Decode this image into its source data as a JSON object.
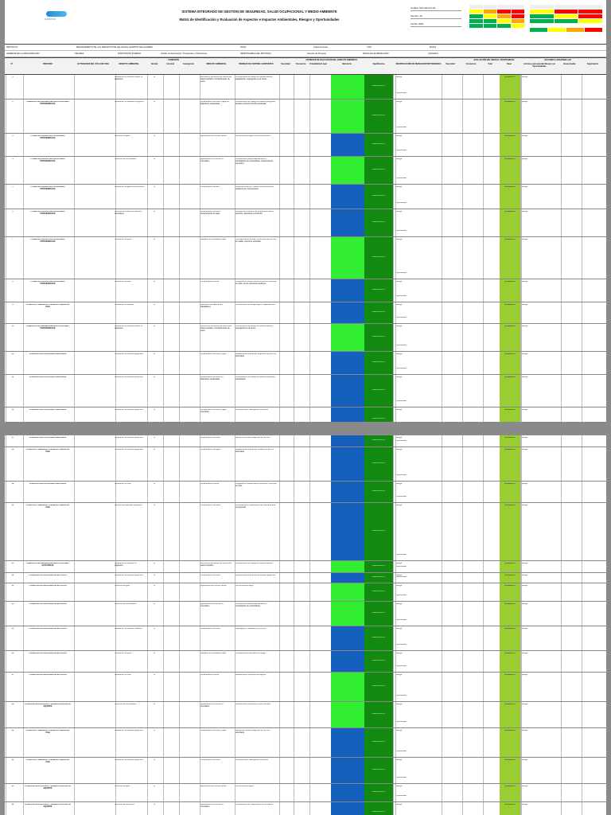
{
  "header": {
    "logo_text": "SANITAS",
    "title_line1": "SISTEMA INTEGRADO DE GESTION DE SEGURIDAD, SALUD OCUPACIONAL Y MEDIO AMBIENTE",
    "title_line2": "Matriz de Identificación y Evaluación de Aspectos e Impactos Ambientales, Riesgos y Oportunidades",
    "ref_code": "Código: SIG-MA-FO-01",
    "ref_version": "Versión: 02",
    "ref_date": "Fecha: 2021"
  },
  "info": {
    "proyecto_label": "PROYECTO",
    "proyecto_value": "MEJORAMIENTO DE LOS SERVICIOS DE SALUD DEL HOSPITAL DE HUARMEY",
    "zona_label": "ZONA",
    "zona_value": "Todas las áreas",
    "cod_label": "CÓD",
    "cod_value": "MAP-E",
    "gerente_label": "GERENTE DE LA ORGANIZACIÓN",
    "pm_label": "PM AREA",
    "disp_label": "DISPOSICION INTERNA",
    "disp_value": "Vertido Contaminación / Propuestas y Ubicaciones",
    "resp_label": "RESPONSABLE DEL PROCESO",
    "resp_value": "Gerente de Proyecto",
    "fecha_label": "FECHA DE ELABORACIÓN",
    "fecha_value": "01/03/2021"
  },
  "columns": [
    "N°",
    "PROCESO",
    "ACTIVIDADES DEL CICLO DE VIDA",
    "ASPECTO AMBIENTAL",
    "Normal",
    "Anormal",
    "Emergencia",
    "IMPACTO AMBIENTAL",
    "MEDIDAS DE CONTROL EXISTENTES",
    "Severidad",
    "Frecuencia",
    "Probabilidad Legal",
    "Valoración",
    "Significancia",
    "IDENTIFICACIÓN DE RIESGOS/OPORTUNIDADES",
    "Severidad",
    "Frecuencia",
    "Total",
    "Nivel",
    "Acciones para abordar Riesgos y/o Oportunidades",
    "Responsable",
    "Seguimiento"
  ],
  "group_headers": {
    "condicion": "CONDICIÓN",
    "criterios": "CRITERIOS DE EVALUACIÓN DEL ASPECTO AMBIENTAL",
    "evaluacion": "EVALUACIÓN DEL RIESGO / OPORTUNIDAD",
    "acciones": "ACCIONES A DESARROLLAR"
  },
  "labels": {
    "nivel_moderado": "MODERADO",
    "significativo": "SIGNIFICATIVO",
    "no_significativo": "NO SIGNIFICATIVO",
    "riesgo": "Riesgo",
    "oportunidad": "Oportunidad",
    "x": "X"
  },
  "page1_rows": [
    {
      "n": "1",
      "proceso": "",
      "aspecto": "Generación de residuos sólidos no peligrosos",
      "impacto": "Disminución del tiempo de vida útil del relleno sanitario / Contaminación de suelo",
      "medidas": "Procedimiento de manejo de residuos sólidos, capacitación, segregación en la fuente",
      "val": "lime",
      "h": 30
    },
    {
      "n": "2",
      "proceso": "Adquisición de materiales para INSTALACIONES PROVISIONALES",
      "aspecto": "Generación de Residuos Peligrosos",
      "impacto": "Contaminación de suelo y agua por disposición inadecuada",
      "medidas": "Procedimiento de manejo de residuos peligrosos, almacén temporal, EO-RS autorizada",
      "val": "lime",
      "h": 42
    },
    {
      "n": "3",
      "proceso": "Producción OBRAS E INSTALACIONES PROVISIONALES",
      "aspecto": "Consumo de agua",
      "impacto": "Agotamiento del recurso natural",
      "medidas": "Uso racional del agua, control de consumo",
      "val": "blue",
      "h": 28
    },
    {
      "n": "4",
      "proceso": "Producción OBRAS E INSTALACIONES PROVISIONALES",
      "aspecto": "Consumo de combustibles",
      "impacto": "Agotamiento de recursos no renovables",
      "medidas": "Procedimiento para almacenamiento y manipulación de combustibles, mantenimiento preventivo",
      "val": "lime",
      "h": 34
    },
    {
      "n": "5",
      "proceso": "Producción OBRAS E INSTALACIONES PROVISIONALES",
      "aspecto": "Generación de gases de combustión",
      "impacto": "Contaminación del aire",
      "medidas": "Inspección de EPPs, revisión técnica vehicular, programa de mantenimiento",
      "val": "blue",
      "h": 30
    },
    {
      "n": "6",
      "proceso": "Producción OBRAS E INSTALACIONES PROVISIONALES",
      "aspecto": "Derrame/vertimiento de efluentes domésticos",
      "impacto": "Contaminación de suelo / Contaminación de agua",
      "medidas": "Medidas de contención, kit antiderrame, baños químicos, disposición por EO-RS",
      "val": "blue",
      "h": 34
    },
    {
      "n": "7",
      "proceso": "Producción OBRAS E INSTALACIONES PROVISIONALES",
      "aspecto": "Generación de polvo",
      "impacto": "Alteración de la calidad del aire",
      "medidas": "Humedecimiento de vías, cercos perimétricos, uso de mallas, control de velocidad",
      "val": "lime",
      "h": 52
    },
    {
      "n": "8",
      "proceso": "Producción OBRAS E INSTALACIONES PROVISIONALES",
      "aspecto": "Generación de ruido",
      "impacto": "Contaminación sonora",
      "medidas": "Programa de mantenimiento preventivo, monitoreo de ruido, uso de protectores auditivos",
      "val": "blue",
      "h": 28
    },
    {
      "n": "9",
      "proceso": "Producción, Tratamiento, Transporte, Disposición Final",
      "aspecto": "Generación de Riesgos",
      "impacto": "Afectación a la salud de los trabajadores",
      "medidas": "Procedimiento de trabajo seguro, capacitaciones",
      "val": "blue",
      "h": 26
    },
    {
      "n": "10",
      "proceso": "Adquisición de materiales para INSTALACIONES PROVISIONALES",
      "aspecto": "Generación de residuos sólidos no peligrosos",
      "impacto": "Disminución del tiempo de vida útil del relleno sanitario / Contaminación de suelo",
      "medidas": "Procedimiento de manejo de residuos sólidos, segregación en la fuente",
      "val": "lime",
      "h": 34
    },
    {
      "n": "11",
      "proceso": "Producción INSTALACIONES SANITARIAS",
      "aspecto": "Generación de residuos peligrosos",
      "impacto": "Contaminación de suelo y agua",
      "medidas": "Almacenamiento temporal, disposición por EO-RS autorizada",
      "val": "blue",
      "h": 28
    },
    {
      "n": "12",
      "proceso": "Producción INSTALACIONES SANITARIAS",
      "aspecto": "Generación de residuos peligrosos",
      "impacto": "Contaminación de suelo por disposición inadecuada",
      "medidas": "Procedimiento de manejo de residuos peligrosos, capacitación",
      "val": "blue",
      "h": 40
    },
    {
      "n": "13",
      "proceso": "Producción INSTALACIONES SANITARIAS",
      "aspecto": "Generación de residuos peligrosos",
      "impacto": "Contaminación de suelo y agua superficial",
      "medidas": "Kit antiderrame, bandejas de contención",
      "val": "blue",
      "h": 30
    },
    {
      "n": "14",
      "proceso": "Producción INSTALACIONES SANITARIAS",
      "aspecto": "Consumo de agua",
      "impacto": "Agotamiento del recurso natural",
      "medidas": "Uso racional del agua, control de consumo",
      "val": "lime",
      "h": 22
    },
    {
      "n": "15",
      "proceso": "Producción INSTALACIONES SANITARIAS",
      "aspecto": "Consumo de lubricantes",
      "impacto": "Agotamiento de recursos no renovables",
      "medidas": "Procedimiento para almacenamiento y manipulación de lubricantes",
      "val": "blue",
      "h": 26
    },
    {
      "n": "16",
      "proceso": "Producción, Tratamiento, Transporte, Disposición Final",
      "aspecto": "Generación de residuos peligrosos",
      "impacto": "Contaminación de suelo",
      "medidas": "Manejo adecuado de residuos peligrosos",
      "val": "blue",
      "h": 12
    }
  ],
  "page2_rows": [
    {
      "n": "17",
      "proceso": "Producción INSTALACIONES SANITARIAS",
      "aspecto": "Generación de residuos peligrosos",
      "impacto": "Contaminación de suelo",
      "medidas": "Manejo de residuos peligrosos por EO-RS",
      "val": "blue",
      "h": 14
    },
    {
      "n": "18",
      "proceso": "Producción, Tratamiento, Transporte, Disposición Final",
      "aspecto": "Generación de residuos peligrosos",
      "impacto": "Contaminación del agua",
      "medidas": "Almacenamiento temporal, traslado por EO-RS autorizada",
      "val": "blue",
      "h": 42
    },
    {
      "n": "19",
      "proceso": "Producción INSTALACIONES SANITARIAS",
      "aspecto": "Generación de ruido",
      "impacto": "Contaminación sonora",
      "medidas": "Programa de mantenimiento preventivo, monitoreo de ruido",
      "val": "blue",
      "h": 26
    },
    {
      "n": "20",
      "proceso": "Producción, Tratamiento, Transporte, Disposición Final",
      "aspecto": "Derrame de materiales peligrosos",
      "impacto": "Contaminación del suelo",
      "medidas": "Kit antiderrame, procedimiento de respuesta ante emergencias",
      "val": "blue",
      "h": 72
    },
    {
      "n": "21",
      "proceso": "Adquisición de materiales para INSTALACIONES ELÉCTRICAS",
      "aspecto": "Generación de residuos no peligrosos",
      "impacto": "Disminución del tiempo de vida útil del relleno sanitario",
      "medidas": "Procedimiento de manejo de residuos sólidos",
      "val": "lime",
      "h": 14
    },
    {
      "n": "22",
      "proceso": "Producción INSTALACIONES ELÉCTRICAS",
      "aspecto": "Generación de residuos peligrosos",
      "impacto": "Contaminación de suelo",
      "medidas": "Almacenamiento temporal de residuos peligrosos",
      "val": "blue",
      "h": 12
    },
    {
      "n": "23",
      "proceso": "Producción INSTALACIONES ELÉCTRICAS",
      "aspecto": "Consumo de agua",
      "impacto": "Agotamiento del recurso natural",
      "medidas": "Uso racional del agua",
      "val": "lime",
      "h": 22
    },
    {
      "n": "24",
      "proceso": "Producción INSTALACIONES ELÉCTRICAS",
      "aspecto": "Consumo de combustibles",
      "impacto": "Agotamiento de recursos no renovables",
      "medidas": "Procedimiento para almacenamiento y manipulación de combustibles",
      "val": "lime",
      "h": 30
    },
    {
      "n": "25",
      "proceso": "Producción INSTALACIONES ELÉCTRICAS",
      "aspecto": "Generación de residuos metálicos",
      "impacto": "Contaminación de suelo",
      "medidas": "Segregación y disposición por EO-RS",
      "val": "blue",
      "h": 30
    },
    {
      "n": "26",
      "proceso": "Producción INSTALACIONES ELÉCTRICAS",
      "aspecto": "Generación de polvo",
      "impacto": "Alteración de la calidad del aire",
      "medidas": "Humedecimiento de áreas de trabajo",
      "val": "blue",
      "h": 26
    },
    {
      "n": "27",
      "proceso": "Producción INSTALACIONES ELÉCTRICAS",
      "aspecto": "Generación de ruido",
      "impacto": "Contaminación sonora",
      "medidas": "Mantenimiento preventivo de equipos",
      "val": "lime",
      "h": 36
    },
    {
      "n": "28",
      "proceso": "Producción MOVILIZACIÓN Y DESMOVILIZACIÓN DE EQUIPOS",
      "aspecto": "Consumo de combustibles",
      "impacto": "Agotamiento de recursos no renovables",
      "medidas": "Mantenimiento preventivo, revisión técnica",
      "val": "lime",
      "h": 32
    },
    {
      "n": "29",
      "proceso": "Producción, Tratamiento, Transporte, Disposición Final",
      "aspecto": "Generación de residuos peligrosos",
      "impacto": "Contaminación de suelo y agua",
      "medidas": "Manejo de residuos peligrosos por EO-RS autorizada",
      "val": "blue",
      "h": 36
    },
    {
      "n": "30",
      "proceso": "Producción, Tratamiento, Transporte, Disposición Final",
      "aspecto": "Generación de residuos peligrosos",
      "impacto": "Contaminación de suelo",
      "medidas": "Kit antiderrame, bandejas de contención",
      "val": "blue",
      "h": 32
    },
    {
      "n": "31",
      "proceso": "Producción MOVILIZACIÓN Y DESMOVILIZACIÓN DE EQUIPOS",
      "aspecto": "Consumo de agua",
      "impacto": "Agotamiento del recurso natural",
      "medidas": "Uso racional del agua",
      "val": "blue",
      "h": 22
    },
    {
      "n": "32",
      "proceso": "Producción MOVILIZACIÓN Y DESMOVILIZACIÓN DE EQUIPOS",
      "aspecto": "Consumo de lubricantes",
      "impacto": "Agotamiento de recursos no renovables",
      "medidas": "Procedimiento de manipulación de lubricantes",
      "val": "blue",
      "h": 26
    },
    {
      "n": "33",
      "proceso": "Producción MOVILIZACIÓN Y DESMOVILIZACIÓN DE EQUIPOS",
      "aspecto": "Generación de gases de combustión",
      "impacto": "Contaminación del aire",
      "medidas": "Programa de mantenimiento preventivo",
      "val": "blue",
      "h": 30
    }
  ]
}
